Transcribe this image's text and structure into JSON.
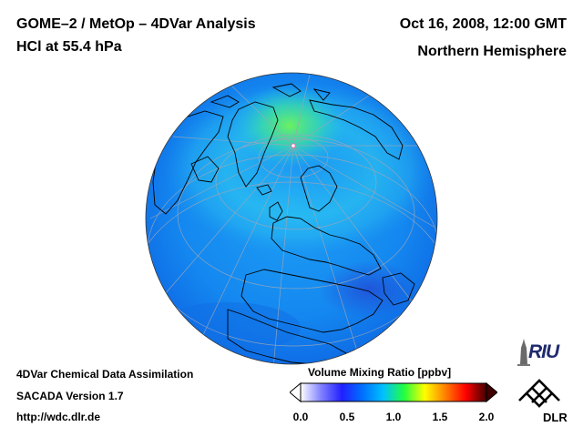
{
  "header": {
    "title_line1": "GOME–2 / MetOp – 4DVar Analysis",
    "title_line2": "HCl at 55.4 hPa",
    "date": "Oct 16, 2008, 12:00 GMT",
    "region": "Northern Hemisphere"
  },
  "footer": {
    "line1": "4DVar Chemical Data Assimilation",
    "line2": "SACADA Version 1.7",
    "url": "http://wdc.dlr.de"
  },
  "colorbar": {
    "title": "Volume Mixing Ratio [ppbv]",
    "ticks": [
      {
        "label": "0.0",
        "value": 0.0
      },
      {
        "label": "0.5",
        "value": 0.5
      },
      {
        "label": "1.0",
        "value": 1.0
      },
      {
        "label": "1.5",
        "value": 1.5
      },
      {
        "label": "2.0",
        "value": 2.0
      }
    ],
    "min": 0.0,
    "max": 2.0,
    "colors": [
      "#ffffff",
      "#8080ff",
      "#2020ff",
      "#0070ff",
      "#00c0ff",
      "#20ff40",
      "#ffff00",
      "#ff8000",
      "#ff0000",
      "#400000"
    ]
  },
  "logos": {
    "riu": "RIU",
    "dlr": "DLR"
  },
  "map": {
    "projection": "orthographic",
    "hemisphere": "north"
  }
}
